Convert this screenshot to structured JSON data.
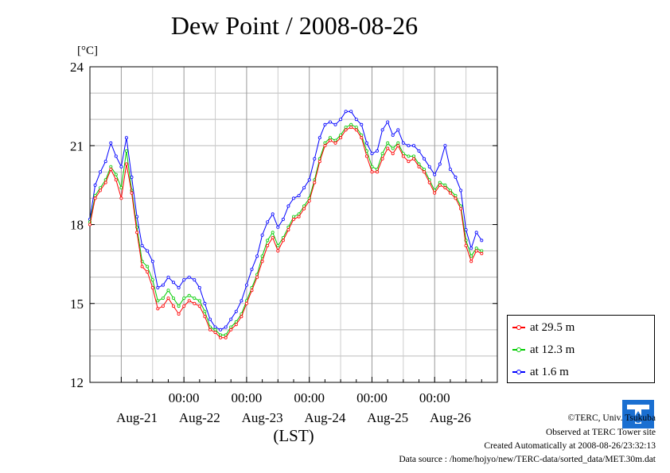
{
  "header": {
    "title": "Dew Point / 2008-08-26",
    "unit": "[°C]"
  },
  "chart_data": {
    "type": "line",
    "title": "Dew Point / 2008-08-26",
    "ylabel": "[°C]",
    "xlabel": "(LST)",
    "ylim": [
      12,
      24
    ],
    "yticks": [
      "24",
      "21",
      "18",
      "15",
      "12"
    ],
    "xlim": [
      "2008-08-20 12:00",
      "2008-08-26 24:00"
    ],
    "xticks": [
      "00:00",
      "00:00",
      "00:00",
      "00:00",
      "00:00"
    ],
    "date_labels": [
      "Aug-21",
      "Aug-22",
      "Aug-23",
      "Aug-24",
      "Aug-25",
      "Aug-26"
    ],
    "grid": true,
    "legend_position": "bottom-right",
    "x_hours": [
      0,
      2,
      4,
      6,
      8,
      10,
      12,
      14,
      16,
      18,
      20,
      22,
      24,
      26,
      28,
      30,
      32,
      34,
      36,
      38,
      40,
      42,
      44,
      46,
      48,
      50,
      52,
      54,
      56,
      58,
      60,
      62,
      64,
      66,
      68,
      70,
      72,
      74,
      76,
      78,
      80,
      82,
      84,
      86,
      88,
      90,
      92,
      94,
      96,
      98,
      100,
      102,
      104,
      106,
      108,
      110,
      112,
      114,
      116,
      118,
      120,
      122,
      124,
      126,
      128,
      130,
      132,
      134,
      136,
      138,
      140,
      142,
      144,
      146,
      148,
      150
    ],
    "series": [
      {
        "name": "at 29.5 m",
        "color": "#ff0000",
        "values": [
          18.0,
          19.0,
          19.3,
          19.6,
          20.1,
          19.7,
          19.0,
          20.3,
          19.2,
          17.7,
          16.4,
          16.2,
          15.6,
          14.8,
          14.9,
          15.2,
          14.9,
          14.6,
          14.9,
          15.1,
          15.0,
          14.9,
          14.5,
          14.0,
          13.9,
          13.7,
          13.7,
          14.0,
          14.2,
          14.5,
          15.0,
          15.5,
          16.0,
          16.6,
          17.2,
          17.5,
          17.0,
          17.4,
          17.8,
          18.2,
          18.3,
          18.6,
          18.9,
          19.6,
          20.4,
          21.0,
          21.2,
          21.1,
          21.3,
          21.6,
          21.7,
          21.6,
          21.3,
          20.6,
          20.0,
          20.0,
          20.5,
          20.9,
          20.7,
          21.0,
          20.6,
          20.4,
          20.5,
          20.2,
          20.0,
          19.6,
          19.2,
          19.5,
          19.4,
          19.2,
          19.0,
          18.6,
          17.2,
          16.6,
          17.0,
          16.9
        ]
      },
      {
        "name": "at 12.3 m",
        "color": "#00cc00",
        "values": [
          18.1,
          19.1,
          19.4,
          19.7,
          20.2,
          19.9,
          19.4,
          20.8,
          19.3,
          17.9,
          16.6,
          16.4,
          15.9,
          15.1,
          15.2,
          15.5,
          15.2,
          14.9,
          15.2,
          15.3,
          15.2,
          15.1,
          14.7,
          14.1,
          14.0,
          13.8,
          13.8,
          14.1,
          14.3,
          14.6,
          15.1,
          15.6,
          16.1,
          16.8,
          17.4,
          17.7,
          17.2,
          17.5,
          17.9,
          18.3,
          18.4,
          18.7,
          19.0,
          19.7,
          20.5,
          21.1,
          21.3,
          21.2,
          21.4,
          21.7,
          21.8,
          21.7,
          21.4,
          20.8,
          20.2,
          20.1,
          20.7,
          21.1,
          20.9,
          21.1,
          20.7,
          20.6,
          20.6,
          20.3,
          20.1,
          19.7,
          19.3,
          19.6,
          19.5,
          19.3,
          19.1,
          18.7,
          17.4,
          16.8,
          17.1,
          17.0
        ]
      },
      {
        "name": "at 1.6 m",
        "color": "#0000ff",
        "values": [
          18.2,
          19.5,
          20.0,
          20.4,
          21.1,
          20.6,
          20.2,
          21.3,
          19.8,
          18.3,
          17.2,
          17.0,
          16.6,
          15.6,
          15.7,
          16.0,
          15.8,
          15.6,
          15.9,
          16.0,
          15.9,
          15.6,
          15.0,
          14.4,
          14.1,
          14.0,
          14.1,
          14.4,
          14.7,
          15.1,
          15.7,
          16.3,
          16.8,
          17.6,
          18.1,
          18.4,
          17.9,
          18.2,
          18.7,
          19.0,
          19.1,
          19.4,
          19.7,
          20.5,
          21.3,
          21.8,
          21.9,
          21.8,
          22.0,
          22.3,
          22.3,
          22.0,
          21.8,
          21.1,
          20.7,
          20.8,
          21.6,
          21.9,
          21.4,
          21.6,
          21.1,
          21.0,
          21.0,
          20.8,
          20.5,
          20.2,
          19.9,
          20.3,
          21.0,
          20.1,
          19.8,
          19.3,
          17.8,
          17.1,
          17.7,
          17.4
        ]
      }
    ]
  },
  "legend": {
    "items": [
      {
        "label": "at 29.5 m",
        "color": "#ff0000"
      },
      {
        "label": "at 12.3 m",
        "color": "#00cc00"
      },
      {
        "label": "at 1.6 m",
        "color": "#0000ff"
      }
    ]
  },
  "footer": {
    "copyright": "©TERC, Univ. Tsukuba",
    "observed": "Observed at TERC Tower site",
    "created": "Created Automatically at 2008-08-26/23:32:13",
    "source": "Data source : /home/hojyo/new/TERC-data/sorted_data/MET.30m.dat",
    "logo_text": "TERC"
  }
}
